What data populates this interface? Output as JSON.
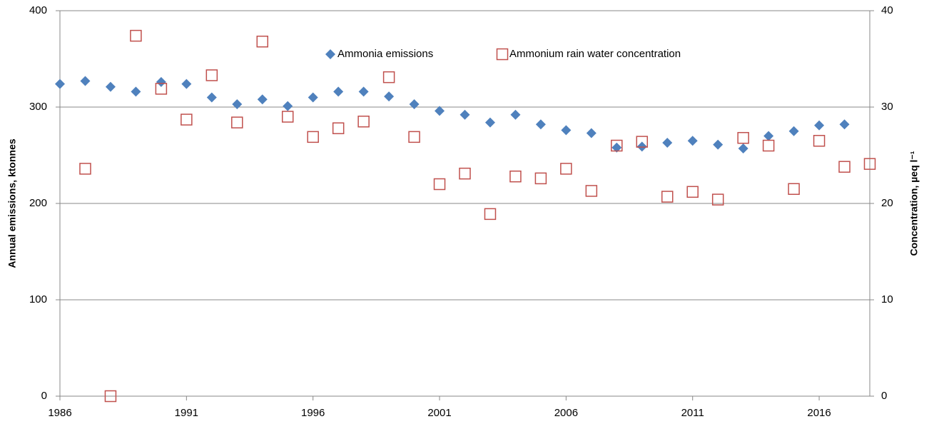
{
  "chart_data": {
    "type": "scatter",
    "x": [
      1986,
      1987,
      1988,
      1989,
      1990,
      1991,
      1992,
      1993,
      1994,
      1995,
      1996,
      1997,
      1998,
      1999,
      2000,
      2001,
      2002,
      2003,
      2004,
      2005,
      2006,
      2007,
      2008,
      2009,
      2010,
      2011,
      2012,
      2013,
      2014,
      2015,
      2016,
      2017,
      2018
    ],
    "series": [
      {
        "name": "Ammonia emissions",
        "color": "#4f81bd",
        "marker": "diamond",
        "values": [
          324,
          327,
          321,
          316,
          326,
          324,
          310,
          303,
          308,
          301,
          310,
          316,
          316,
          311,
          303,
          296,
          292,
          284,
          292,
          282,
          276,
          273,
          258,
          259,
          263,
          265,
          261,
          257,
          270,
          275,
          281,
          282,
          null
        ]
      },
      {
        "name": "Ammonium rain water concentration",
        "color": "#c0504d",
        "marker": "square",
        "axis": "y2",
        "values": [
          null,
          23.6,
          0,
          37.4,
          31.9,
          28.7,
          33.3,
          28.4,
          36.8,
          29.0,
          26.9,
          27.8,
          28.5,
          33.1,
          26.9,
          22.0,
          23.1,
          18.9,
          22.8,
          22.6,
          23.6,
          21.3,
          26.0,
          26.4,
          20.7,
          21.2,
          20.4,
          26.8,
          26.0,
          21.5,
          26.5,
          23.8,
          24.1
        ]
      }
    ],
    "xlim": [
      1986,
      2018
    ],
    "xticks": [
      1986,
      1991,
      1996,
      2001,
      2006,
      2011,
      2016
    ],
    "ylim": [
      0,
      400
    ],
    "yticks": [
      0,
      100,
      200,
      300,
      400
    ],
    "y2lim": [
      0,
      40
    ],
    "y2ticks": [
      0,
      10,
      20,
      30,
      40
    ],
    "ylabel": "Annual emissions, ktonnes",
    "y2label": "Concentration, µeq l⁻¹",
    "grid": true
  }
}
